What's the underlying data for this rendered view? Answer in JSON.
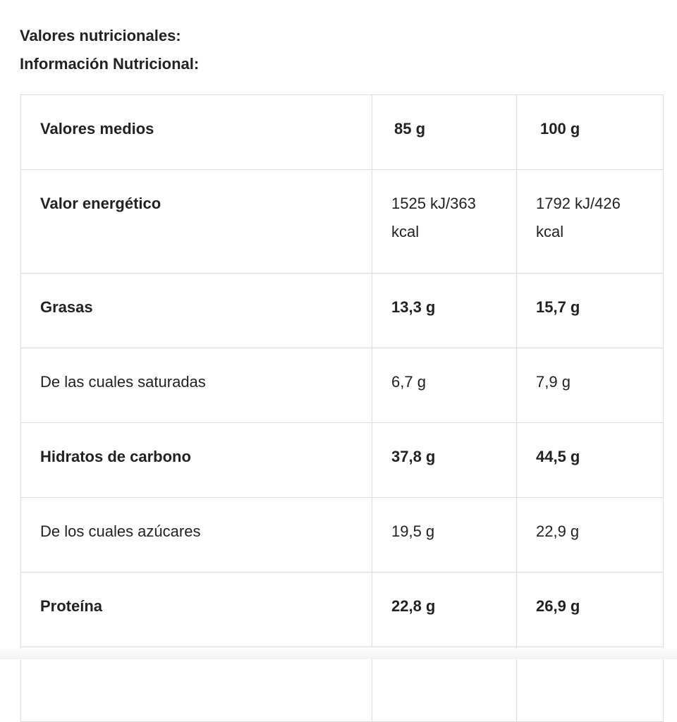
{
  "headings": [
    "Valores nutricionales:",
    "Información Nutricional:"
  ],
  "table": {
    "rows": [
      [
        "Valores medios",
        "85 g",
        "100 g"
      ],
      [
        "Valor energético",
        "1525 kJ/363 kcal",
        "1792 kJ/426 kcal"
      ],
      [
        "Grasas",
        "13,3 g",
        "15,7 g"
      ],
      [
        "De las cuales saturadas",
        "6,7 g",
        "7,9 g"
      ],
      [
        "Hidratos de carbono",
        "37,8 g",
        "44,5 g"
      ],
      [
        "De los cuales azúcares",
        "19,5 g",
        "22,9 g"
      ],
      [
        "Proteína",
        "22,8 g",
        "26,9 g"
      ]
    ]
  }
}
